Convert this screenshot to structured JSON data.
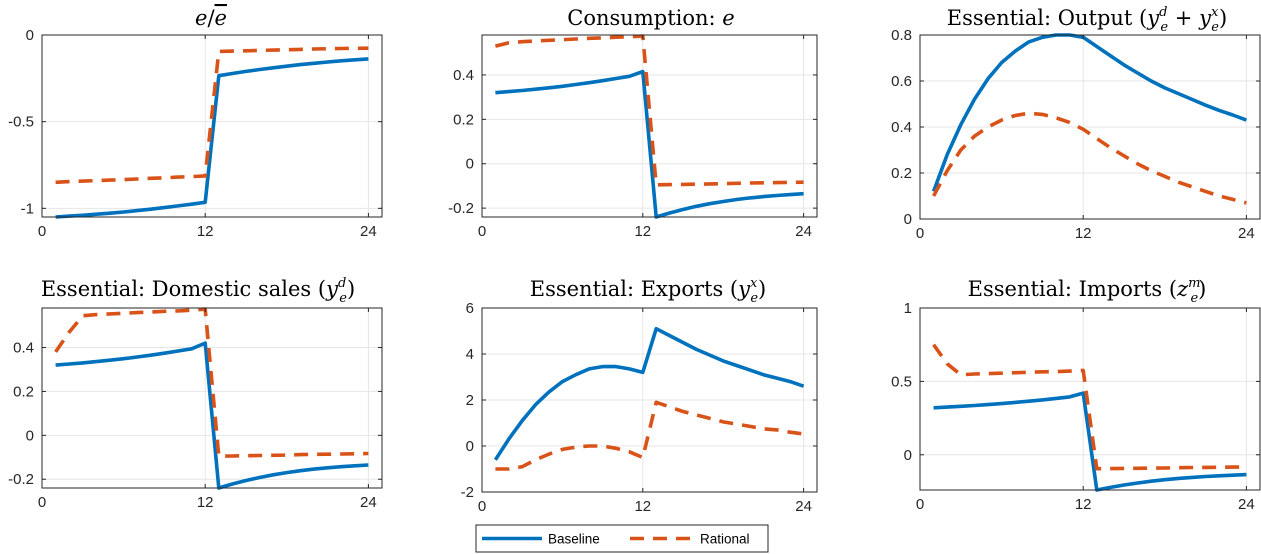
{
  "colors": {
    "baseline": "#0072BD",
    "rational": "#D95319",
    "grid": "#e6e6e6",
    "axis": "#262626"
  },
  "legend": {
    "items": [
      {
        "series": "baseline",
        "label": "Baseline"
      },
      {
        "series": "rational",
        "label": "Rational"
      }
    ]
  },
  "chart_data": [
    {
      "type": "line",
      "title": "e/ē",
      "xlim": [
        0,
        25
      ],
      "ylim": [
        -1.05,
        0
      ],
      "xticks": [
        0,
        12,
        24
      ],
      "xticklabels": [
        "0",
        "12",
        "24"
      ],
      "yticks": [
        -1,
        -0.5,
        0
      ],
      "yticklabels": [
        "-1",
        "-0.5",
        "0"
      ],
      "grid": true,
      "series": [
        {
          "key": "baseline",
          "name": "Baseline",
          "style": "solid",
          "x": [
            1,
            2,
            3,
            4,
            5,
            6,
            7,
            8,
            9,
            10,
            11,
            12,
            13,
            14,
            15,
            16,
            17,
            18,
            19,
            20,
            21,
            22,
            23,
            24
          ],
          "y": [
            -1.05,
            -1.045,
            -1.04,
            -1.034,
            -1.028,
            -1.021,
            -1.013,
            -1.005,
            -0.996,
            -0.986,
            -0.976,
            -0.965,
            -0.235,
            -0.222,
            -0.21,
            -0.199,
            -0.189,
            -0.18,
            -0.171,
            -0.163,
            -0.156,
            -0.149,
            -0.143,
            -0.138
          ]
        },
        {
          "key": "rational",
          "name": "Rational",
          "style": "dashed",
          "x": [
            1,
            2,
            3,
            4,
            5,
            6,
            7,
            8,
            9,
            10,
            11,
            12,
            13,
            14,
            15,
            16,
            17,
            18,
            19,
            20,
            21,
            22,
            23,
            24
          ],
          "y": [
            -0.85,
            -0.846,
            -0.843,
            -0.84,
            -0.837,
            -0.834,
            -0.831,
            -0.827,
            -0.824,
            -0.82,
            -0.817,
            -0.813,
            -0.095,
            -0.093,
            -0.091,
            -0.089,
            -0.087,
            -0.085,
            -0.083,
            -0.081,
            -0.079,
            -0.078,
            -0.077,
            -0.076
          ]
        }
      ]
    },
    {
      "type": "line",
      "title": "Consumption: e",
      "xlim": [
        0,
        25
      ],
      "ylim": [
        -0.24,
        0.58
      ],
      "xticks": [
        0,
        12,
        24
      ],
      "xticklabels": [
        "0",
        "12",
        "24"
      ],
      "yticks": [
        -0.2,
        0,
        0.2,
        0.4
      ],
      "yticklabels": [
        "-0.2",
        "0",
        "0.2",
        "0.4"
      ],
      "grid": true,
      "series": [
        {
          "key": "baseline",
          "name": "Baseline",
          "style": "solid",
          "x": [
            1,
            2,
            3,
            4,
            5,
            6,
            7,
            8,
            9,
            10,
            11,
            12,
            13,
            14,
            15,
            16,
            17,
            18,
            19,
            20,
            21,
            22,
            23,
            24
          ],
          "y": [
            0.32,
            0.325,
            0.33,
            0.336,
            0.342,
            0.349,
            0.357,
            0.365,
            0.374,
            0.384,
            0.394,
            0.415,
            -0.24,
            -0.222,
            -0.206,
            -0.192,
            -0.18,
            -0.17,
            -0.161,
            -0.154,
            -0.148,
            -0.143,
            -0.139,
            -0.135
          ]
        },
        {
          "key": "rational",
          "name": "Rational",
          "style": "dashed",
          "x": [
            1,
            2,
            3,
            4,
            5,
            6,
            7,
            8,
            9,
            10,
            11,
            12,
            13,
            14,
            15,
            16,
            17,
            18,
            19,
            20,
            21,
            22,
            23,
            24
          ],
          "y": [
            0.53,
            0.545,
            0.55,
            0.553,
            0.556,
            0.559,
            0.562,
            0.565,
            0.567,
            0.57,
            0.572,
            0.575,
            -0.095,
            -0.094,
            -0.093,
            -0.092,
            -0.091,
            -0.09,
            -0.088,
            -0.087,
            -0.086,
            -0.085,
            -0.084,
            -0.083
          ]
        }
      ]
    },
    {
      "type": "line",
      "title": "Essential: Output (y_e^d + y_e^x)",
      "xlim": [
        0,
        25
      ],
      "ylim": [
        0,
        0.8
      ],
      "xticks": [
        0,
        12,
        24
      ],
      "xticklabels": [
        "0",
        "12",
        "24"
      ],
      "yticks": [
        0,
        0.2,
        0.4,
        0.6,
        0.8
      ],
      "yticklabels": [
        "0",
        "0.2",
        "0.4",
        "0.6",
        "0.8"
      ],
      "grid": true,
      "series": [
        {
          "key": "baseline",
          "name": "Baseline",
          "style": "solid",
          "x": [
            1,
            2,
            3,
            4,
            5,
            6,
            7,
            8,
            9,
            10,
            11,
            12,
            13,
            14,
            15,
            16,
            17,
            18,
            19,
            20,
            21,
            22,
            23,
            24
          ],
          "y": [
            0.12,
            0.28,
            0.41,
            0.52,
            0.61,
            0.68,
            0.73,
            0.77,
            0.79,
            0.8,
            0.8,
            0.79,
            0.75,
            0.71,
            0.67,
            0.635,
            0.6,
            0.57,
            0.545,
            0.52,
            0.495,
            0.472,
            0.452,
            0.43
          ]
        },
        {
          "key": "rational",
          "name": "Rational",
          "style": "dashed",
          "x": [
            1,
            2,
            3,
            4,
            5,
            6,
            7,
            8,
            9,
            10,
            11,
            12,
            13,
            14,
            15,
            16,
            17,
            18,
            19,
            20,
            21,
            22,
            23,
            24
          ],
          "y": [
            0.1,
            0.21,
            0.3,
            0.36,
            0.4,
            0.43,
            0.45,
            0.46,
            0.455,
            0.44,
            0.42,
            0.39,
            0.35,
            0.31,
            0.275,
            0.24,
            0.21,
            0.185,
            0.16,
            0.14,
            0.12,
            0.1,
            0.085,
            0.07
          ]
        }
      ]
    },
    {
      "type": "line",
      "title": "Essential: Domestic sales (y_e^d)",
      "xlim": [
        0,
        25
      ],
      "ylim": [
        -0.24,
        0.58
      ],
      "xticks": [
        0,
        12,
        24
      ],
      "xticklabels": [
        "0",
        "12",
        "24"
      ],
      "yticks": [
        -0.2,
        0,
        0.2,
        0.4
      ],
      "yticklabels": [
        "-0.2",
        "0",
        "0.2",
        "0.4"
      ],
      "grid": true,
      "series": [
        {
          "key": "baseline",
          "name": "Baseline",
          "style": "solid",
          "x": [
            1,
            2,
            3,
            4,
            5,
            6,
            7,
            8,
            9,
            10,
            11,
            12,
            13,
            14,
            15,
            16,
            17,
            18,
            19,
            20,
            21,
            22,
            23,
            24
          ],
          "y": [
            0.32,
            0.325,
            0.33,
            0.336,
            0.342,
            0.349,
            0.357,
            0.365,
            0.374,
            0.384,
            0.394,
            0.42,
            -0.24,
            -0.222,
            -0.206,
            -0.192,
            -0.18,
            -0.17,
            -0.161,
            -0.154,
            -0.148,
            -0.143,
            -0.139,
            -0.135
          ]
        },
        {
          "key": "rational",
          "name": "Rational",
          "style": "dashed",
          "x": [
            1,
            2,
            3,
            4,
            5,
            6,
            7,
            8,
            9,
            10,
            11,
            12,
            13,
            14,
            15,
            16,
            17,
            18,
            19,
            20,
            21,
            22,
            23,
            24
          ],
          "y": [
            0.38,
            0.47,
            0.545,
            0.55,
            0.553,
            0.556,
            0.559,
            0.562,
            0.565,
            0.567,
            0.57,
            0.575,
            -0.095,
            -0.094,
            -0.093,
            -0.092,
            -0.091,
            -0.09,
            -0.088,
            -0.087,
            -0.086,
            -0.085,
            -0.084,
            -0.083
          ]
        }
      ]
    },
    {
      "type": "line",
      "title": "Essential: Exports (y_e^x)",
      "xlim": [
        0,
        25
      ],
      "ylim": [
        -2,
        6
      ],
      "xticks": [
        0,
        12,
        24
      ],
      "xticklabels": [
        "0",
        "12",
        "24"
      ],
      "yticks": [
        -2,
        0,
        2,
        4,
        6
      ],
      "yticklabels": [
        "-2",
        "0",
        "2",
        "4",
        "6"
      ],
      "grid": true,
      "series": [
        {
          "key": "baseline",
          "name": "Baseline",
          "style": "solid",
          "x": [
            1,
            2,
            3,
            4,
            5,
            6,
            7,
            8,
            9,
            10,
            11,
            12,
            13,
            14,
            15,
            16,
            17,
            18,
            19,
            20,
            21,
            22,
            23,
            24
          ],
          "y": [
            -0.6,
            0.3,
            1.1,
            1.8,
            2.35,
            2.8,
            3.1,
            3.35,
            3.45,
            3.45,
            3.35,
            3.2,
            5.1,
            4.8,
            4.5,
            4.2,
            3.95,
            3.7,
            3.5,
            3.3,
            3.1,
            2.95,
            2.8,
            2.6
          ]
        },
        {
          "key": "rational",
          "name": "Rational",
          "style": "dashed",
          "x": [
            1,
            2,
            3,
            4,
            5,
            6,
            7,
            8,
            9,
            10,
            11,
            12,
            13,
            14,
            15,
            16,
            17,
            18,
            19,
            20,
            21,
            22,
            23,
            24
          ],
          "y": [
            -1.0,
            -1.0,
            -0.9,
            -0.6,
            -0.35,
            -0.15,
            -0.05,
            0.0,
            0.0,
            -0.1,
            -0.25,
            -0.5,
            1.9,
            1.7,
            1.5,
            1.35,
            1.2,
            1.05,
            0.95,
            0.85,
            0.75,
            0.7,
            0.6,
            0.52
          ]
        }
      ]
    },
    {
      "type": "line",
      "title": "Essential: Imports (z_e^m)",
      "xlim": [
        0,
        25
      ],
      "ylim": [
        -0.24,
        1
      ],
      "xticks": [
        0,
        12,
        24
      ],
      "xticklabels": [
        "0",
        "12",
        "24"
      ],
      "yticks": [
        0,
        0.5,
        1
      ],
      "yticklabels": [
        "0",
        "0.5",
        "1"
      ],
      "grid": true,
      "series": [
        {
          "key": "baseline",
          "name": "Baseline",
          "style": "solid",
          "x": [
            1,
            2,
            3,
            4,
            5,
            6,
            7,
            8,
            9,
            10,
            11,
            12,
            13,
            14,
            15,
            16,
            17,
            18,
            19,
            20,
            21,
            22,
            23,
            24
          ],
          "y": [
            0.32,
            0.325,
            0.33,
            0.336,
            0.342,
            0.349,
            0.357,
            0.365,
            0.374,
            0.384,
            0.394,
            0.42,
            -0.24,
            -0.222,
            -0.206,
            -0.192,
            -0.18,
            -0.17,
            -0.161,
            -0.154,
            -0.148,
            -0.143,
            -0.139,
            -0.135
          ]
        },
        {
          "key": "rational",
          "name": "Rational",
          "style": "dashed",
          "x": [
            1,
            2,
            3,
            4,
            5,
            6,
            7,
            8,
            9,
            10,
            11,
            12,
            13,
            14,
            15,
            16,
            17,
            18,
            19,
            20,
            21,
            22,
            23,
            24
          ],
          "y": [
            0.75,
            0.62,
            0.545,
            0.55,
            0.553,
            0.556,
            0.559,
            0.562,
            0.565,
            0.567,
            0.57,
            0.575,
            -0.095,
            -0.094,
            -0.093,
            -0.092,
            -0.091,
            -0.09,
            -0.088,
            -0.087,
            -0.086,
            -0.085,
            -0.084,
            -0.083
          ]
        }
      ]
    }
  ]
}
